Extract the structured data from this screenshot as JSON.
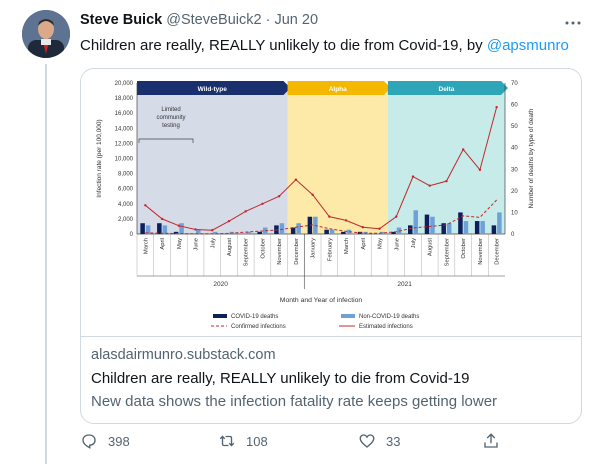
{
  "tweet": {
    "author_name": "Steve Buick",
    "handle": "@SteveBuick2",
    "separator": "·",
    "date": "Jun 20",
    "text": "Children are really, REALLY unlikely to die from Covid-19, by ",
    "mention": "@apsmunro"
  },
  "card": {
    "domain": "alasdairmunro.substack.com",
    "title": "Children are really, REALLY unlikely to die from Covid-19",
    "description": "New data shows the infection fatality rate keeps getting lower"
  },
  "actions": {
    "replies": "398",
    "retweets": "108",
    "likes": "33"
  },
  "chart_data": {
    "type": "bar",
    "eras": [
      {
        "label": "Wild-type",
        "color": "#1a2f6e",
        "from": 0,
        "to": 10
      },
      {
        "label": "Alpha",
        "color": "#f5b800",
        "from": 10,
        "to": 17
      },
      {
        "label": "Delta",
        "color": "#2ea6b8",
        "from": 17,
        "to": 25
      }
    ],
    "era_backgrounds": [
      "#d6dbe8",
      "#fde9a8",
      "#c6ebe9"
    ],
    "categories": [
      "March",
      "April",
      "May",
      "June",
      "July",
      "August",
      "September",
      "October",
      "November",
      "December",
      "January",
      "February",
      "March",
      "April",
      "May",
      "June",
      "July",
      "August",
      "September",
      "October",
      "November",
      "December"
    ],
    "years": [
      "2020",
      "2021"
    ],
    "annotation": "Limited community testing",
    "ylabel_left": "Infection rate (per 100,000)",
    "ylabel_right": "Number of deaths by type of death",
    "xlabel": "Month and Year of infection",
    "ylim_left": [
      0,
      20000
    ],
    "yticks_left": [
      "0",
      "2,000",
      "4,000",
      "6,000",
      "8,000",
      "10,000",
      "12,000",
      "14,000",
      "16,000",
      "18,000",
      "20,000"
    ],
    "ylim_right": [
      0,
      70
    ],
    "yticks_right": [
      "0",
      "10",
      "20",
      "30",
      "40",
      "50",
      "60",
      "70"
    ],
    "series": [
      {
        "name": "COVID-19 deaths",
        "kind": "bar",
        "color": "#0d1f5c",
        "axis": "right",
        "values": [
          5,
          5,
          1,
          0,
          0,
          0,
          0,
          1,
          4,
          3,
          8,
          2,
          1,
          1,
          0,
          1,
          4,
          9,
          5,
          10,
          6,
          4
        ]
      },
      {
        "name": "Non-COVID-19 deaths",
        "kind": "bar",
        "color": "#6ea1d8",
        "axis": "right",
        "values": [
          4,
          4,
          5,
          2,
          1,
          1,
          1,
          3,
          5,
          5,
          8,
          2,
          2,
          1,
          1,
          3,
          11,
          8,
          5,
          6,
          6,
          10
        ]
      },
      {
        "name": "Confirmed infections",
        "kind": "dashed-line",
        "color": "#c0282d",
        "axis": "left",
        "values": [
          150,
          100,
          50,
          30,
          30,
          80,
          250,
          400,
          550,
          900,
          1200,
          700,
          350,
          100,
          100,
          300,
          800,
          1000,
          1200,
          2400,
          2200,
          4500
        ]
      },
      {
        "name": "Estimated infections",
        "kind": "line",
        "color": "#c0282d",
        "axis": "left",
        "values": [
          3800,
          2000,
          1100,
          600,
          500,
          1700,
          3000,
          4000,
          5000,
          7200,
          5200,
          2300,
          1800,
          900,
          700,
          2300,
          7600,
          6400,
          7000,
          11200,
          8500,
          16800
        ]
      }
    ]
  }
}
